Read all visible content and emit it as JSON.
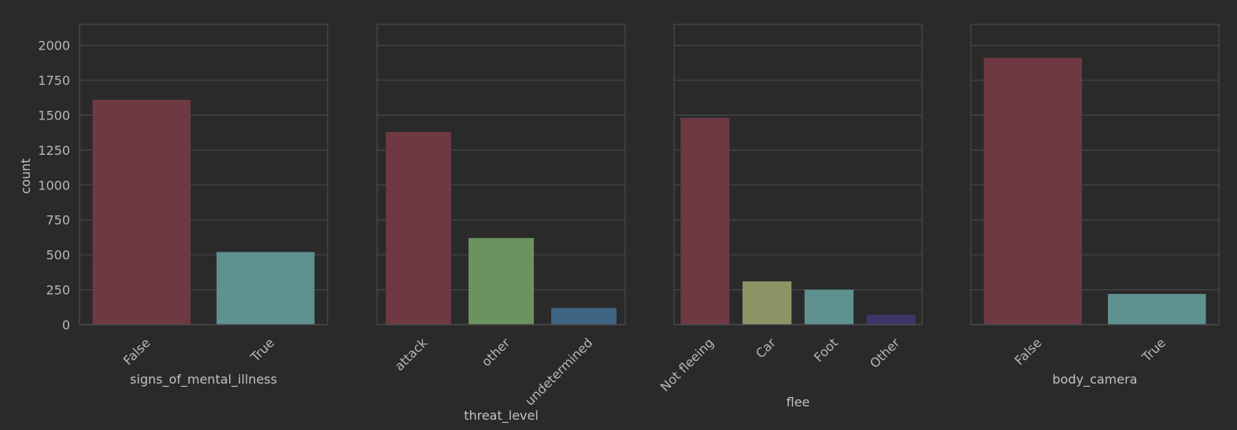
{
  "chart_data": [
    {
      "type": "bar",
      "xlabel": "signs_of_mental_illness",
      "ylabel": "count",
      "ylim": [
        0,
        2150
      ],
      "yticks": [
        0,
        250,
        500,
        750,
        1000,
        1250,
        1500,
        1750,
        2000
      ],
      "grid": true,
      "categories": [
        "False",
        "True"
      ],
      "values": [
        1610,
        520
      ],
      "colors": [
        "#6e3943",
        "#5e9190"
      ]
    },
    {
      "type": "bar",
      "xlabel": "threat_level",
      "ylabel": "",
      "ylim": [
        0,
        2150
      ],
      "grid": true,
      "categories": [
        "attack",
        "other",
        "undetermined"
      ],
      "values": [
        1380,
        620,
        120
      ],
      "colors": [
        "#6e3943",
        "#6b9360",
        "#3e6584"
      ]
    },
    {
      "type": "bar",
      "xlabel": "flee",
      "ylabel": "",
      "ylim": [
        0,
        2150
      ],
      "grid": true,
      "categories": [
        "Not fleeing",
        "Car",
        "Foot",
        "Other"
      ],
      "values": [
        1480,
        310,
        250,
        70
      ],
      "colors": [
        "#6e3943",
        "#8d9566",
        "#5e9190",
        "#3b3868"
      ]
    },
    {
      "type": "bar",
      "xlabel": "body_camera",
      "ylabel": "",
      "ylim": [
        0,
        2150
      ],
      "grid": true,
      "categories": [
        "False",
        "True"
      ],
      "values": [
        1910,
        220
      ],
      "colors": [
        "#6e3943",
        "#5e9190"
      ]
    }
  ]
}
